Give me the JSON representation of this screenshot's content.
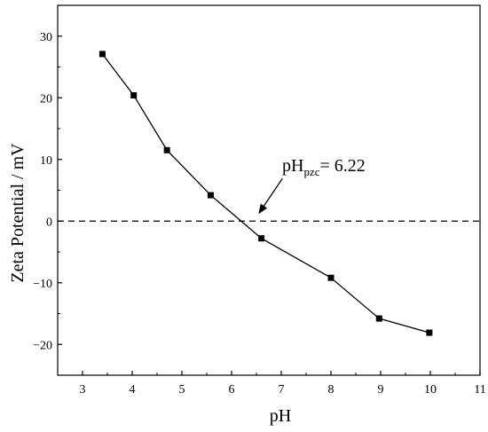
{
  "chart_data": {
    "type": "line",
    "xlabel": "pH",
    "ylabel": "Zeta Potential / mV",
    "xlim": [
      2.5,
      11
    ],
    "ylim": [
      -25,
      35
    ],
    "xticks": [
      "3",
      "4",
      "5",
      "6",
      "7",
      "8",
      "9",
      "10",
      "11"
    ],
    "yticks": [
      "30",
      "20",
      "10",
      "0",
      "−10",
      "−20"
    ],
    "grid": false,
    "series": [
      {
        "marker": "square",
        "color": "#000000",
        "x": [
          3.4,
          4.03,
          4.7,
          5.58,
          6.6,
          8.0,
          8.97,
          9.98
        ],
        "y": [
          27.1,
          20.4,
          11.5,
          4.2,
          -2.8,
          -9.2,
          -15.8,
          -18.1
        ]
      }
    ],
    "reference_line": {
      "y": 0,
      "style": "dashed"
    },
    "annotation": {
      "base": "pH",
      "subscript": "pzc",
      "text": "= 6.22",
      "points_to_x": 6.22
    }
  }
}
